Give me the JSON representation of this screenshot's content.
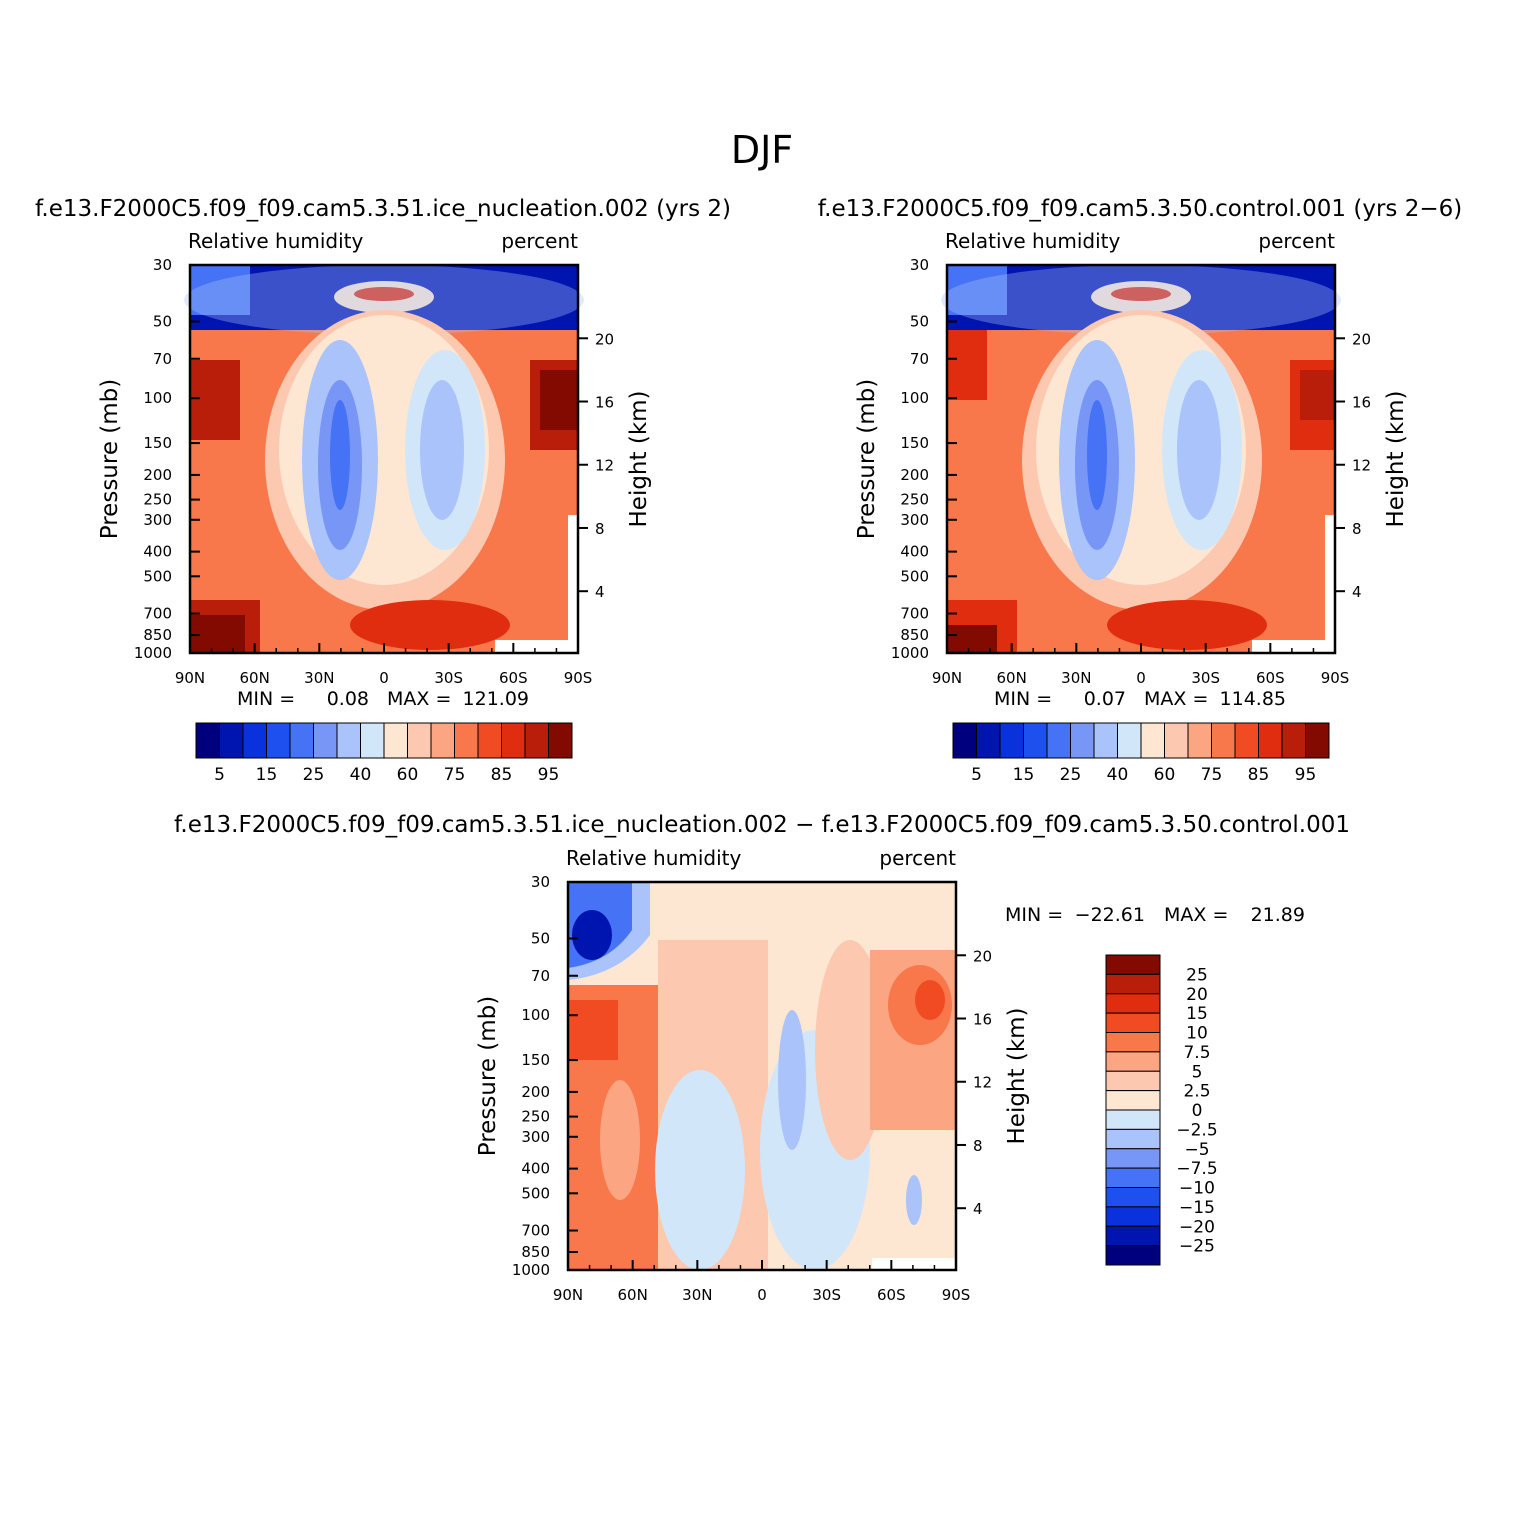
{
  "figure_title": "DJF",
  "colors": {
    "rh": [
      "#00007f",
      "#0014b0",
      "#0a32dc",
      "#1e50f0",
      "#4673f5",
      "#7896f5",
      "#aac3fa",
      "#d2e6fa",
      "#fde6d2",
      "#fcc8b0",
      "#fca582",
      "#f8784b",
      "#f04b23",
      "#e12d0f",
      "#b91e0a",
      "#820a00"
    ],
    "diff": [
      "#820a00",
      "#b91e0a",
      "#e12d0f",
      "#f04b23",
      "#f8784b",
      "#fca582",
      "#fcc8b0",
      "#fde6d2",
      "#d2e6fa",
      "#aac3fa",
      "#7896f5",
      "#4673f5",
      "#1e50f0",
      "#0a32dc",
      "#0014b0",
      "#00007f"
    ]
  },
  "chart_data": [
    {
      "type": "heatmap",
      "title": "f.e13.F2000C5.f09_f09.cam5.3.51.ice_nucleation.002 (yrs 2)",
      "left_string": "Relative humidity",
      "right_string": "percent",
      "ylabel": "Pressure (mb)",
      "ylabel_right": "Height (km)",
      "x_ticks": [
        "90N",
        "60N",
        "30N",
        "0",
        "30S",
        "60S",
        "90S"
      ],
      "y_ticks": [
        "30",
        "50",
        "70",
        "100",
        "150",
        "200",
        "250",
        "300",
        "400",
        "500",
        "700",
        "850",
        "1000"
      ],
      "y2_ticks": [
        "20",
        "16",
        "12",
        "8",
        "4"
      ],
      "stats": {
        "min_label": "MIN =",
        "min": "0.08",
        "max_label": "MAX =",
        "max": "121.09"
      },
      "colorbar_labels": [
        "5",
        "15",
        "25",
        "40",
        "60",
        "75",
        "85",
        "95"
      ]
    },
    {
      "type": "heatmap",
      "title": "f.e13.F2000C5.f09_f09.cam5.3.50.control.001 (yrs 2−6)",
      "left_string": "Relative humidity",
      "right_string": "percent",
      "ylabel": "Pressure (mb)",
      "ylabel_right": "Height (km)",
      "x_ticks": [
        "90N",
        "60N",
        "30N",
        "0",
        "30S",
        "60S",
        "90S"
      ],
      "y_ticks": [
        "30",
        "50",
        "70",
        "100",
        "150",
        "200",
        "250",
        "300",
        "400",
        "500",
        "700",
        "850",
        "1000"
      ],
      "y2_ticks": [
        "20",
        "16",
        "12",
        "8",
        "4"
      ],
      "stats": {
        "min_label": "MIN =",
        "min": "0.07",
        "max_label": "MAX =",
        "max": "114.85"
      },
      "colorbar_labels": [
        "5",
        "15",
        "25",
        "40",
        "60",
        "75",
        "85",
        "95"
      ]
    },
    {
      "type": "heatmap",
      "title": "f.e13.F2000C5.f09_f09.cam5.3.51.ice_nucleation.002 − f.e13.F2000C5.f09_f09.cam5.3.50.control.001",
      "left_string": "Relative humidity",
      "right_string": "percent",
      "ylabel": "Pressure (mb)",
      "ylabel_right": "Height (km)",
      "x_ticks": [
        "90N",
        "60N",
        "30N",
        "0",
        "30S",
        "60S",
        "90S"
      ],
      "y_ticks": [
        "30",
        "50",
        "70",
        "100",
        "150",
        "200",
        "250",
        "300",
        "400",
        "500",
        "700",
        "850",
        "1000"
      ],
      "y2_ticks": [
        "20",
        "16",
        "12",
        "8",
        "4"
      ],
      "stats": {
        "min_label": "MIN =",
        "min": "−22.61",
        "max_label": "MAX =",
        "max": "21.89"
      },
      "colorbar_labels": [
        "25",
        "20",
        "15",
        "10",
        "7.5",
        "5",
        "2.5",
        "0",
        "−2.5",
        "−5",
        "−7.5",
        "−10",
        "−15",
        "−20",
        "−25"
      ]
    }
  ]
}
